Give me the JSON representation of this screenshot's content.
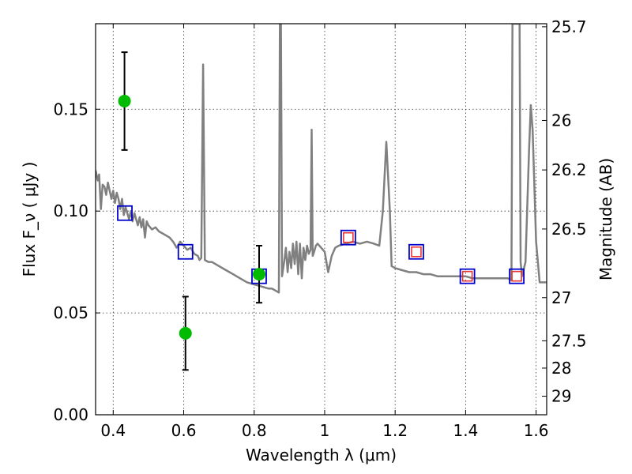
{
  "chart_data": {
    "type": "scatter",
    "title": "",
    "xlabel": "Wavelength  λ (μm)",
    "ylabel": "Flux  F_ν  ( μJy )",
    "y2label": "Magnitude (AB)",
    "xlim": [
      0.35,
      1.63
    ],
    "ylim": [
      0.0,
      0.192
    ],
    "grid": true,
    "x_ticks": [
      0.4,
      0.6,
      0.8,
      1.0,
      1.2,
      1.4,
      1.6
    ],
    "x_tick_labels": [
      "0.4",
      "0.6",
      "0.8",
      "1",
      "1.2",
      "1.4",
      "1.6"
    ],
    "y_ticks": [
      0.0,
      0.05,
      0.1,
      0.15
    ],
    "y_tick_labels": [
      "0.00",
      "0.05",
      "0.10",
      "0.15"
    ],
    "y2_ticks": [
      {
        "label": "25.7",
        "flux": 0.1905
      },
      {
        "label": "26",
        "flux": 0.1445
      },
      {
        "label": "26.2",
        "flux": 0.1202
      },
      {
        "label": "26.5",
        "flux": 0.0912
      },
      {
        "label": "27",
        "flux": 0.0575
      },
      {
        "label": "27.5",
        "flux": 0.0363
      },
      {
        "label": "28",
        "flux": 0.0229
      },
      {
        "label": "29",
        "flux": 0.0091
      }
    ],
    "model_spectrum": {
      "color": "#808080",
      "points": [
        [
          0.35,
          0.12
        ],
        [
          0.356,
          0.115
        ],
        [
          0.36,
          0.118
        ],
        [
          0.365,
          0.101
        ],
        [
          0.37,
          0.113
        ],
        [
          0.375,
          0.112
        ],
        [
          0.38,
          0.108
        ],
        [
          0.385,
          0.114
        ],
        [
          0.39,
          0.11
        ],
        [
          0.395,
          0.106
        ],
        [
          0.4,
          0.11
        ],
        [
          0.405,
          0.104
        ],
        [
          0.41,
          0.109
        ],
        [
          0.415,
          0.106
        ],
        [
          0.42,
          0.101
        ],
        [
          0.425,
          0.106
        ],
        [
          0.43,
          0.098
        ],
        [
          0.435,
          0.102
        ],
        [
          0.44,
          0.099
        ],
        [
          0.445,
          0.096
        ],
        [
          0.45,
          0.1
        ],
        [
          0.455,
          0.095
        ],
        [
          0.46,
          0.099
        ],
        [
          0.465,
          0.096
        ],
        [
          0.47,
          0.093
        ],
        [
          0.475,
          0.097
        ],
        [
          0.48,
          0.092
        ],
        [
          0.485,
          0.096
        ],
        [
          0.49,
          0.087
        ],
        [
          0.495,
          0.095
        ],
        [
          0.5,
          0.093
        ],
        [
          0.51,
          0.091
        ],
        [
          0.52,
          0.092
        ],
        [
          0.53,
          0.09
        ],
        [
          0.54,
          0.089
        ],
        [
          0.55,
          0.088
        ],
        [
          0.56,
          0.087
        ],
        [
          0.57,
          0.085
        ],
        [
          0.58,
          0.082
        ],
        [
          0.59,
          0.085
        ],
        [
          0.6,
          0.083
        ],
        [
          0.61,
          0.081
        ],
        [
          0.62,
          0.082
        ],
        [
          0.63,
          0.079
        ],
        [
          0.64,
          0.078
        ],
        [
          0.645,
          0.076
        ],
        [
          0.65,
          0.077
        ],
        [
          0.655,
          0.172
        ],
        [
          0.66,
          0.076
        ],
        [
          0.67,
          0.075
        ],
        [
          0.68,
          0.075
        ],
        [
          0.69,
          0.074
        ],
        [
          0.7,
          0.073
        ],
        [
          0.72,
          0.071
        ],
        [
          0.74,
          0.069
        ],
        [
          0.76,
          0.067
        ],
        [
          0.78,
          0.065
        ],
        [
          0.8,
          0.064
        ],
        [
          0.82,
          0.063
        ],
        [
          0.84,
          0.062
        ],
        [
          0.85,
          0.062
        ],
        [
          0.86,
          0.061
        ],
        [
          0.87,
          0.06
        ],
        [
          0.873,
          0.192
        ],
        [
          0.876,
          0.192
        ],
        [
          0.879,
          0.068
        ],
        [
          0.885,
          0.075
        ],
        [
          0.89,
          0.082
        ],
        [
          0.895,
          0.07
        ],
        [
          0.9,
          0.08
        ],
        [
          0.905,
          0.072
        ],
        [
          0.91,
          0.084
        ],
        [
          0.915,
          0.074
        ],
        [
          0.92,
          0.085
        ],
        [
          0.925,
          0.069
        ],
        [
          0.93,
          0.084
        ],
        [
          0.935,
          0.067
        ],
        [
          0.94,
          0.082
        ],
        [
          0.945,
          0.076
        ],
        [
          0.95,
          0.083
        ],
        [
          0.955,
          0.079
        ],
        [
          0.96,
          0.081
        ],
        [
          0.963,
          0.14
        ],
        [
          0.966,
          0.078
        ],
        [
          0.97,
          0.08
        ],
        [
          0.975,
          0.083
        ],
        [
          0.98,
          0.084
        ],
        [
          0.99,
          0.082
        ],
        [
          1.0,
          0.08
        ],
        [
          1.01,
          0.07
        ],
        [
          1.02,
          0.078
        ],
        [
          1.03,
          0.082
        ],
        [
          1.04,
          0.083
        ],
        [
          1.06,
          0.084
        ],
        [
          1.08,
          0.085
        ],
        [
          1.1,
          0.084
        ],
        [
          1.12,
          0.085
        ],
        [
          1.14,
          0.084
        ],
        [
          1.155,
          0.083
        ],
        [
          1.165,
          0.1
        ],
        [
          1.175,
          0.134
        ],
        [
          1.185,
          0.1
        ],
        [
          1.19,
          0.073
        ],
        [
          1.2,
          0.072
        ],
        [
          1.22,
          0.071
        ],
        [
          1.24,
          0.07
        ],
        [
          1.26,
          0.07
        ],
        [
          1.28,
          0.069
        ],
        [
          1.3,
          0.069
        ],
        [
          1.32,
          0.068
        ],
        [
          1.34,
          0.068
        ],
        [
          1.36,
          0.068
        ],
        [
          1.38,
          0.068
        ],
        [
          1.4,
          0.068
        ],
        [
          1.42,
          0.067
        ],
        [
          1.44,
          0.067
        ],
        [
          1.46,
          0.067
        ],
        [
          1.48,
          0.067
        ],
        [
          1.5,
          0.067
        ],
        [
          1.52,
          0.067
        ],
        [
          1.53,
          0.066
        ],
        [
          1.533,
          0.192
        ],
        [
          1.548,
          0.192
        ],
        [
          1.553,
          0.192
        ],
        [
          1.556,
          0.075
        ],
        [
          1.56,
          0.068
        ],
        [
          1.57,
          0.075
        ],
        [
          1.58,
          0.13
        ],
        [
          1.585,
          0.152
        ],
        [
          1.59,
          0.14
        ],
        [
          1.6,
          0.085
        ],
        [
          1.61,
          0.065
        ],
        [
          1.63,
          0.065
        ]
      ]
    },
    "series": [
      {
        "marker": "circle",
        "color": "#00bb00",
        "points": [
          {
            "x": 0.432,
            "y": 0.154,
            "yerr": [
              0.13,
              0.178
            ]
          },
          {
            "x": 0.605,
            "y": 0.04,
            "yerr": [
              0.022,
              0.058
            ]
          },
          {
            "x": 0.814,
            "y": 0.069,
            "yerr": [
              0.055,
              0.083
            ]
          }
        ]
      },
      {
        "marker": "open-square",
        "color": "#0000cc",
        "points": [
          {
            "x": 0.433,
            "y": 0.099
          },
          {
            "x": 0.605,
            "y": 0.08
          },
          {
            "x": 0.814,
            "y": 0.068
          },
          {
            "x": 1.067,
            "y": 0.087
          },
          {
            "x": 1.26,
            "y": 0.08
          },
          {
            "x": 1.405,
            "y": 0.068
          },
          {
            "x": 1.545,
            "y": 0.068
          }
        ]
      },
      {
        "marker": "open-square",
        "color": "#ee3333",
        "points": [
          {
            "x": 1.067,
            "y": 0.087
          },
          {
            "x": 1.26,
            "y": 0.08
          },
          {
            "x": 1.405,
            "y": 0.068
          },
          {
            "x": 1.545,
            "y": 0.068
          }
        ]
      }
    ]
  }
}
